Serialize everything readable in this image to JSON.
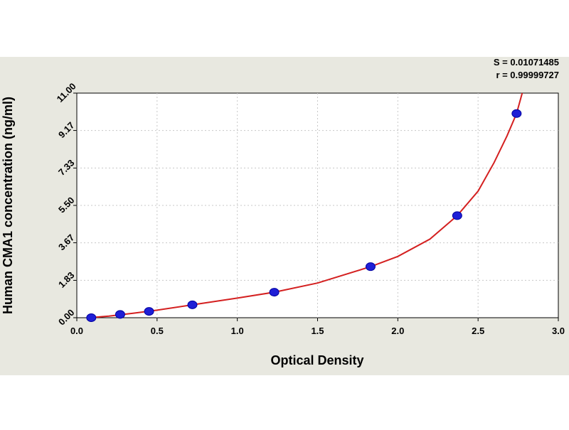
{
  "chart_data": {
    "type": "scatter",
    "xlabel": "Optical Density",
    "ylabel": "Human CMA1 concentration (ng/ml)",
    "stats": {
      "s_text": "S = 0.01071485",
      "r_text": "r = 0.99999727"
    },
    "xlim": [
      0.0,
      3.0
    ],
    "ylim": [
      0.0,
      11.0
    ],
    "x_ticks": [
      "0.0",
      "0.5",
      "1.0",
      "1.5",
      "2.0",
      "2.5",
      "3.0"
    ],
    "x_tick_values": [
      0.0,
      0.5,
      1.0,
      1.5,
      2.0,
      2.5,
      3.0
    ],
    "y_ticks": [
      "0.00",
      "1.83",
      "3.67",
      "5.50",
      "7.33",
      "9.17",
      "11.00"
    ],
    "y_tick_values": [
      0.0,
      1.83,
      3.67,
      5.5,
      7.33,
      9.17,
      11.0
    ],
    "grid": true,
    "series": [
      {
        "points": [
          {
            "x": 0.09,
            "y": 0.0
          },
          {
            "x": 0.27,
            "y": 0.16
          },
          {
            "x": 0.45,
            "y": 0.31
          },
          {
            "x": 0.72,
            "y": 0.63
          },
          {
            "x": 1.23,
            "y": 1.25
          },
          {
            "x": 1.83,
            "y": 2.5
          },
          {
            "x": 2.37,
            "y": 5.0
          },
          {
            "x": 2.74,
            "y": 10.0
          }
        ]
      }
    ],
    "fit_curve": [
      {
        "x": 0.08,
        "y": 0.0
      },
      {
        "x": 0.2,
        "y": 0.08
      },
      {
        "x": 0.35,
        "y": 0.22
      },
      {
        "x": 0.5,
        "y": 0.37
      },
      {
        "x": 0.72,
        "y": 0.63
      },
      {
        "x": 1.0,
        "y": 0.96
      },
      {
        "x": 1.23,
        "y": 1.25
      },
      {
        "x": 1.5,
        "y": 1.7
      },
      {
        "x": 1.83,
        "y": 2.5
      },
      {
        "x": 2.0,
        "y": 3.0
      },
      {
        "x": 2.2,
        "y": 3.85
      },
      {
        "x": 2.37,
        "y": 5.0
      },
      {
        "x": 2.5,
        "y": 6.2
      },
      {
        "x": 2.6,
        "y": 7.6
      },
      {
        "x": 2.68,
        "y": 8.9
      },
      {
        "x": 2.74,
        "y": 10.0
      },
      {
        "x": 2.775,
        "y": 11.0
      }
    ],
    "colors": {
      "point": "#1f1fd6",
      "point_edge": "#0000a0",
      "curve": "#d42020",
      "grid": "#c8c8c8",
      "axis": "#000000",
      "band": "#e8e8e0"
    }
  }
}
